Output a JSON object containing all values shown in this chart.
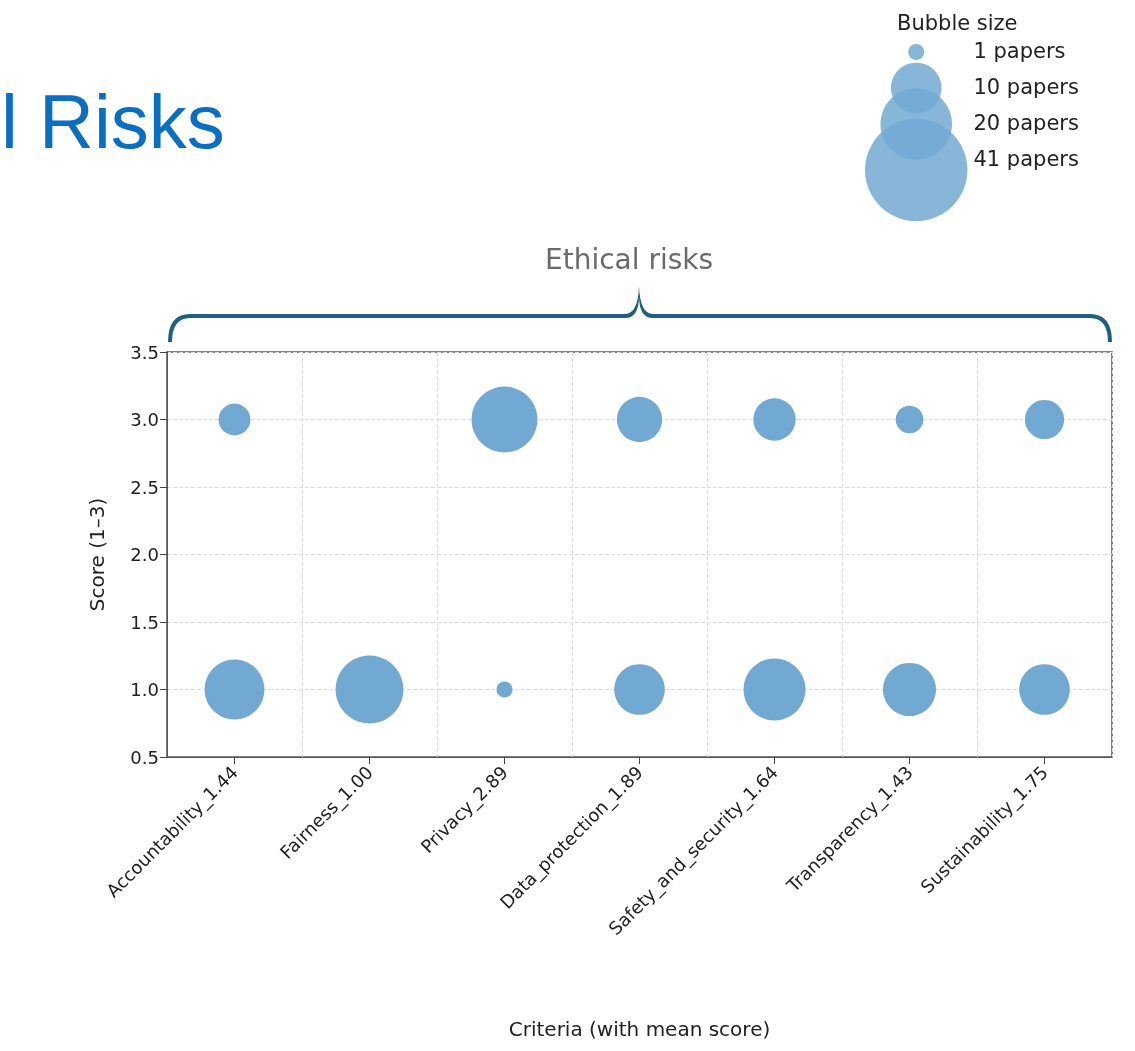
{
  "chart_data": {
    "type": "bubble",
    "title": "l Risks",
    "xlabel": "Criteria (with mean score)",
    "ylabel": "Score (1–3)",
    "annotations": [
      "Ethical risks"
    ],
    "categories": [
      "Accountability_1.44",
      "Fairness_1.00",
      "Privacy_2.89",
      "Data_protection_1.89",
      "Safety_and_security_1.64",
      "Transparency_1.43",
      "Sustainability_1.75"
    ],
    "series": [
      {
        "color": "#72a9d2",
        "values": [
          3,
          null,
          3,
          3,
          3,
          3,
          3
        ],
        "sizes": [
          4,
          null,
          17,
          8,
          7,
          3,
          6
        ]
      },
      {
        "color": "#72a9d2",
        "values": [
          1,
          1,
          1,
          1,
          1,
          1,
          1
        ],
        "sizes": [
          14,
          18,
          1,
          10,
          15,
          11,
          10
        ]
      }
    ],
    "legend_title": "Bubble size",
    "size_legend": [
      {
        "value": 1,
        "label": "1 papers"
      },
      {
        "value": 10,
        "label": "10 papers"
      },
      {
        "value": 20,
        "label": "20 papers"
      },
      {
        "value": 41,
        "label": "41 papers"
      }
    ],
    "ylim": [
      0.5,
      3.5
    ],
    "yticks": [
      {
        "value": 0.5,
        "label": "0.5"
      },
      {
        "value": 1,
        "label": "1.0"
      },
      {
        "value": 1.5,
        "label": "1.5"
      },
      {
        "value": 2,
        "label": "2.0"
      },
      {
        "value": 2.5,
        "label": "2.5"
      },
      {
        "value": 3,
        "label": "3.0"
      },
      {
        "value": 3.5,
        "label": "3.5"
      }
    ],
    "grid": true,
    "marker": "circle"
  }
}
